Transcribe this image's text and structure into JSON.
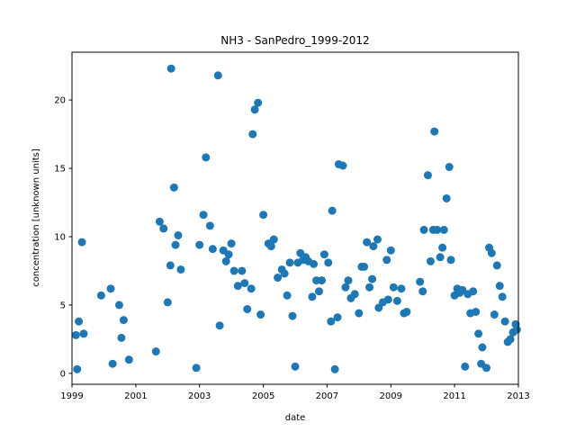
{
  "chart_data": {
    "type": "scatter",
    "title": "NH3 - SanPedro_1999-2012",
    "xlabel": "date",
    "ylabel": "concentration [unknown units]",
    "xlim": [
      "1999-01-01",
      "2013-01-01"
    ],
    "ylim": [
      -0.8,
      23.5
    ],
    "xticks": [
      "1999",
      "2001",
      "2003",
      "2005",
      "2007",
      "2009",
      "2011",
      "2013"
    ],
    "yticks": [
      0,
      5,
      10,
      15,
      20
    ],
    "grid": false,
    "marker_color": "#1f77b4",
    "points": [
      [
        "1999-02-15",
        2.8
      ],
      [
        "1999-03-01",
        0.3
      ],
      [
        "1999-03-20",
        3.8
      ],
      [
        "1999-04-25",
        9.6
      ],
      [
        "1999-05-15",
        2.9
      ],
      [
        "1999-12-01",
        5.7
      ],
      [
        "2000-03-20",
        6.2
      ],
      [
        "2000-04-10",
        0.7
      ],
      [
        "2000-06-25",
        5.0
      ],
      [
        "2000-07-20",
        2.6
      ],
      [
        "2000-08-15",
        3.9
      ],
      [
        "2000-10-15",
        1.0
      ],
      [
        "2001-08-20",
        1.6
      ],
      [
        "2001-10-01",
        11.1
      ],
      [
        "2001-11-15",
        10.6
      ],
      [
        "2002-01-01",
        5.2
      ],
      [
        "2002-02-01",
        7.9
      ],
      [
        "2002-02-10",
        22.3
      ],
      [
        "2002-03-15",
        13.6
      ],
      [
        "2002-04-01",
        9.4
      ],
      [
        "2002-05-01",
        10.1
      ],
      [
        "2002-06-01",
        7.6
      ],
      [
        "2002-11-25",
        0.4
      ],
      [
        "2003-01-01",
        9.4
      ],
      [
        "2003-02-15",
        11.6
      ],
      [
        "2003-03-15",
        15.8
      ],
      [
        "2003-05-01",
        10.8
      ],
      [
        "2003-06-01",
        9.1
      ],
      [
        "2003-08-01",
        21.8
      ],
      [
        "2003-08-20",
        3.5
      ],
      [
        "2003-10-01",
        9.0
      ],
      [
        "2003-11-01",
        8.2
      ],
      [
        "2003-12-01",
        8.7
      ],
      [
        "2004-01-01",
        9.5
      ],
      [
        "2004-02-01",
        7.5
      ],
      [
        "2004-03-15",
        6.4
      ],
      [
        "2004-05-01",
        7.5
      ],
      [
        "2004-06-01",
        6.6
      ],
      [
        "2004-07-01",
        4.7
      ],
      [
        "2004-08-15",
        6.2
      ],
      [
        "2004-09-01",
        17.5
      ],
      [
        "2004-09-25",
        19.3
      ],
      [
        "2004-11-01",
        19.8
      ],
      [
        "2004-12-01",
        4.3
      ],
      [
        "2005-01-01",
        11.6
      ],
      [
        "2005-03-01",
        9.5
      ],
      [
        "2005-04-01",
        9.3
      ],
      [
        "2005-05-01",
        9.8
      ],
      [
        "2005-06-15",
        7.0
      ],
      [
        "2005-08-01",
        7.6
      ],
      [
        "2005-09-01",
        7.3
      ],
      [
        "2005-10-01",
        5.7
      ],
      [
        "2005-11-01",
        8.1
      ],
      [
        "2005-12-01",
        4.2
      ],
      [
        "2006-01-01",
        0.5
      ],
      [
        "2006-02-01",
        8.1
      ],
      [
        "2006-03-01",
        8.8
      ],
      [
        "2006-04-01",
        8.3
      ],
      [
        "2006-05-01",
        8.5
      ],
      [
        "2006-06-01",
        8.2
      ],
      [
        "2006-07-15",
        5.6
      ],
      [
        "2006-08-01",
        8.0
      ],
      [
        "2006-09-01",
        6.8
      ],
      [
        "2006-10-01",
        6.0
      ],
      [
        "2006-11-01",
        6.8
      ],
      [
        "2006-12-01",
        8.7
      ],
      [
        "2007-01-15",
        8.1
      ],
      [
        "2007-02-15",
        3.8
      ],
      [
        "2007-03-01",
        11.9
      ],
      [
        "2007-04-01",
        0.3
      ],
      [
        "2007-05-01",
        4.1
      ],
      [
        "2007-05-15",
        15.3
      ],
      [
        "2007-07-01",
        15.2
      ],
      [
        "2007-08-01",
        6.3
      ],
      [
        "2007-09-01",
        6.8
      ],
      [
        "2007-10-01",
        5.5
      ],
      [
        "2007-11-15",
        5.8
      ],
      [
        "2008-01-01",
        4.4
      ],
      [
        "2008-02-01",
        7.8
      ],
      [
        "2008-03-01",
        7.8
      ],
      [
        "2008-04-01",
        9.6
      ],
      [
        "2008-05-01",
        6.3
      ],
      [
        "2008-06-01",
        6.9
      ],
      [
        "2008-06-15",
        9.3
      ],
      [
        "2008-08-01",
        9.8
      ],
      [
        "2008-08-15",
        4.8
      ],
      [
        "2008-10-01",
        5.2
      ],
      [
        "2008-11-15",
        8.3
      ],
      [
        "2008-12-01",
        5.4
      ],
      [
        "2009-01-01",
        9.0
      ],
      [
        "2009-02-01",
        6.3
      ],
      [
        "2009-03-15",
        5.3
      ],
      [
        "2009-05-01",
        6.2
      ],
      [
        "2009-06-01",
        4.4
      ],
      [
        "2009-07-01",
        4.5
      ],
      [
        "2009-12-01",
        6.7
      ],
      [
        "2010-01-01",
        6.0
      ],
      [
        "2010-01-15",
        10.5
      ],
      [
        "2010-03-01",
        14.5
      ],
      [
        "2010-04-01",
        8.2
      ],
      [
        "2010-05-01",
        10.5
      ],
      [
        "2010-05-15",
        17.7
      ],
      [
        "2010-06-15",
        10.5
      ],
      [
        "2010-07-20",
        8.5
      ],
      [
        "2010-08-15",
        9.2
      ],
      [
        "2010-09-01",
        10.5
      ],
      [
        "2010-10-01",
        12.8
      ],
      [
        "2010-11-01",
        15.1
      ],
      [
        "2010-11-20",
        8.3
      ],
      [
        "2011-01-01",
        5.7
      ],
      [
        "2011-02-01",
        6.2
      ],
      [
        "2011-03-01",
        5.9
      ],
      [
        "2011-04-01",
        6.1
      ],
      [
        "2011-05-01",
        0.5
      ],
      [
        "2011-06-01",
        5.8
      ],
      [
        "2011-07-01",
        4.4
      ],
      [
        "2011-08-01",
        6.0
      ],
      [
        "2011-09-01",
        4.5
      ],
      [
        "2011-10-01",
        2.9
      ],
      [
        "2011-11-01",
        0.7
      ],
      [
        "2011-11-15",
        1.9
      ],
      [
        "2012-01-01",
        0.4
      ],
      [
        "2012-02-01",
        9.2
      ],
      [
        "2012-03-01",
        8.8
      ],
      [
        "2012-04-01",
        4.3
      ],
      [
        "2012-05-01",
        7.9
      ],
      [
        "2012-06-01",
        6.4
      ],
      [
        "2012-07-01",
        5.6
      ],
      [
        "2012-08-01",
        3.8
      ],
      [
        "2012-09-01",
        2.3
      ],
      [
        "2012-10-01",
        2.5
      ],
      [
        "2012-11-01",
        3.0
      ],
      [
        "2012-12-01",
        3.6
      ],
      [
        "2012-12-15",
        3.2
      ]
    ]
  }
}
